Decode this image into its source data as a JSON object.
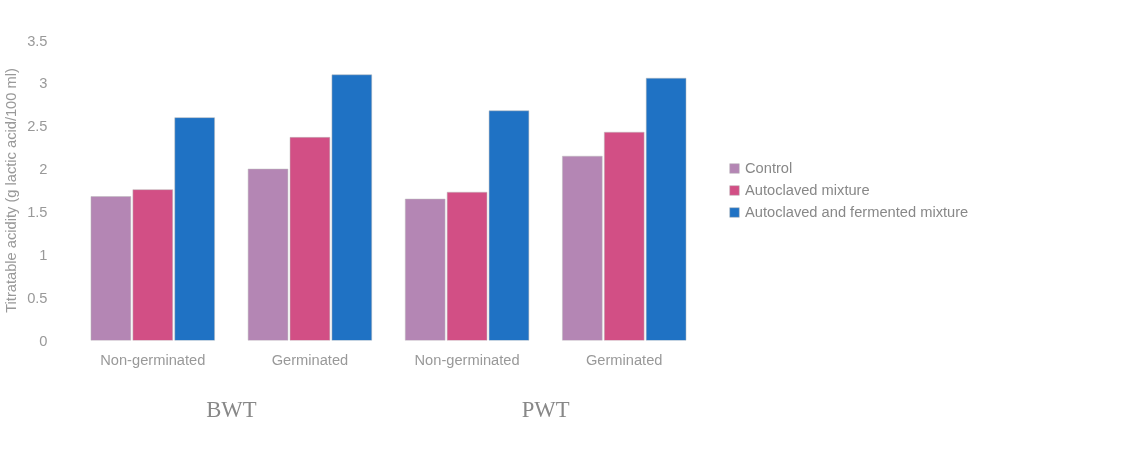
{
  "chart_data": {
    "type": "bar",
    "ylabel": "Titratable acidity (g lactic acid/100 ml)",
    "categories": [
      "Non-germinated",
      "Germinated",
      "Non-germinated",
      "Germinated"
    ],
    "series": [
      {
        "name": "Control",
        "color": "#b486b4",
        "values": [
          1.68,
          2.0,
          1.65,
          2.15
        ]
      },
      {
        "name": "Autoclaved mixture",
        "color": "#d24f85",
        "values": [
          1.76,
          2.37,
          1.73,
          2.43
        ]
      },
      {
        "name": "Autoclaved and fermented mixture",
        "color": "#1f72c4",
        "values": [
          2.6,
          3.1,
          2.68,
          3.06
        ]
      }
    ],
    "ylim": [
      0,
      3.5
    ],
    "yticks": [
      0,
      0.5,
      1,
      1.5,
      2,
      2.5,
      3,
      3.5
    ],
    "annotations": [
      "BWT",
      "PWT"
    ],
    "grid": false,
    "legend": "right"
  }
}
